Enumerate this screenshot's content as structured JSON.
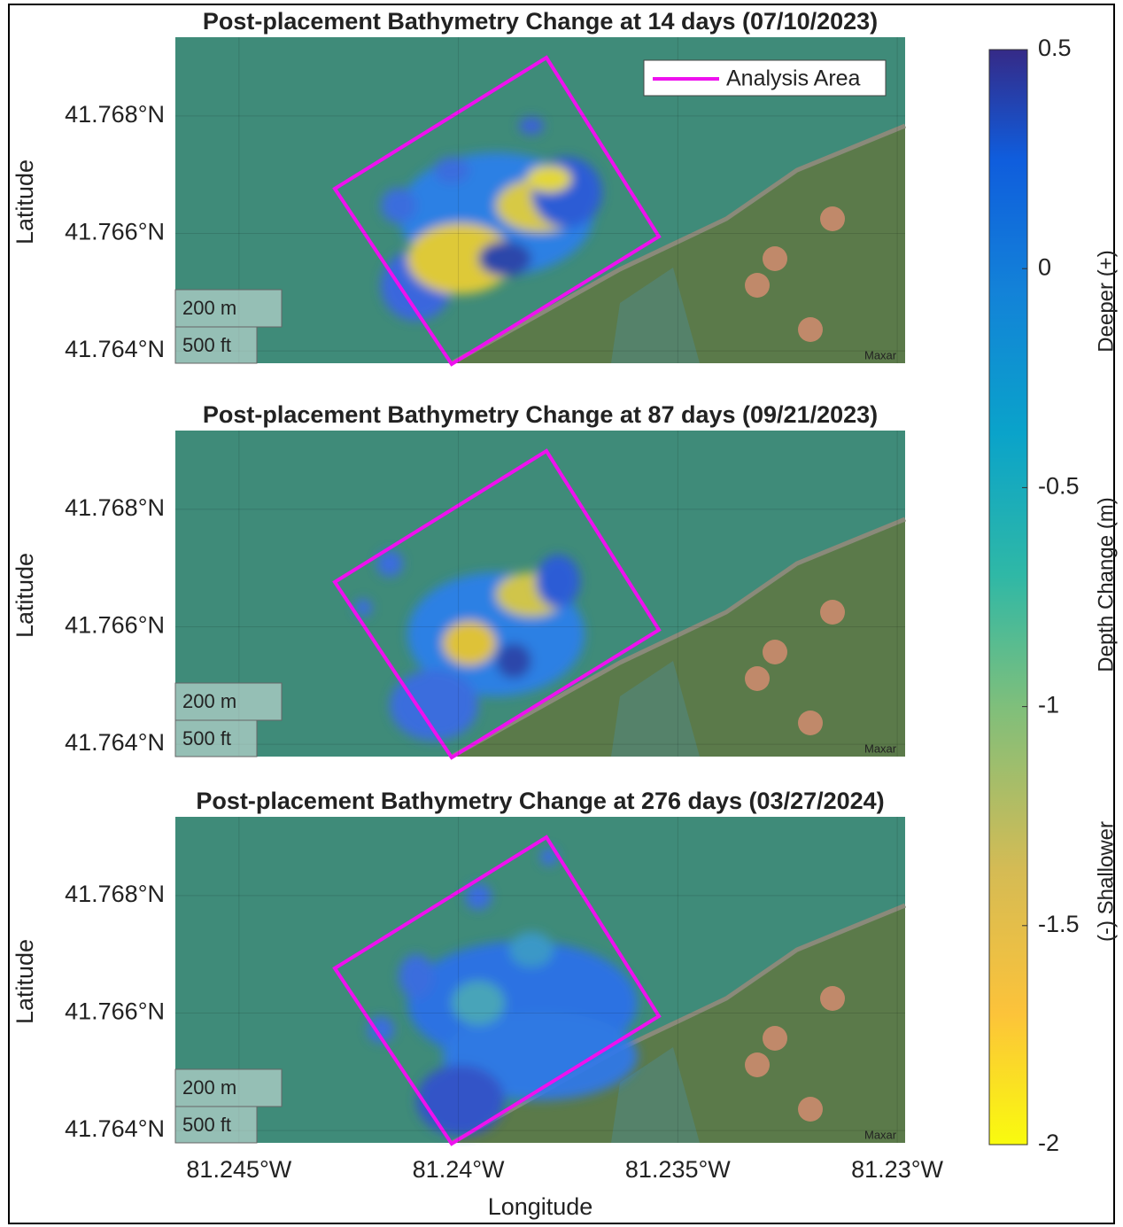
{
  "panels": [
    {
      "title": "Post-placement Bathymetry Change at 14 days (07/10/2023)",
      "ylabel": "Latitude",
      "scale_bar": [
        "200 m",
        "500 ft"
      ],
      "attribution": "Maxar"
    },
    {
      "title": "Post-placement Bathymetry Change at 87 days (09/21/2023)",
      "ylabel": "Latitude",
      "scale_bar": [
        "200 m",
        "500 ft"
      ],
      "attribution": "Maxar"
    },
    {
      "title": "Post-placement Bathymetry Change at 276 days (03/27/2024)",
      "ylabel": "Latitude",
      "scale_bar": [
        "200 m",
        "500 ft"
      ],
      "attribution": "Maxar"
    }
  ],
  "legend": "Analysis Area",
  "xlabel": "Longitude",
  "xlim": [
    -81.24645,
    -81.22982
  ],
  "xticks": [
    {
      "value": -81.245,
      "label": "81.245°W"
    },
    {
      "value": -81.24,
      "label": "81.24°W"
    },
    {
      "value": -81.235,
      "label": "81.235°W"
    },
    {
      "value": -81.23,
      "label": "81.23°W"
    }
  ],
  "ylim": [
    41.76379,
    41.76934
  ],
  "yticks": [
    {
      "value": 41.768,
      "label": "41.768°N"
    },
    {
      "value": 41.766,
      "label": "41.766°N"
    },
    {
      "value": 41.764,
      "label": "41.764°N"
    }
  ],
  "colorbar": {
    "label": "Depth Change (m)",
    "high_label": "Deeper (+)",
    "low_label": "(-) Shallower",
    "lim": [
      -2,
      0.5
    ],
    "ticks": [
      0.5,
      0,
      -0.5,
      -1,
      -1.5,
      -2
    ]
  }
}
